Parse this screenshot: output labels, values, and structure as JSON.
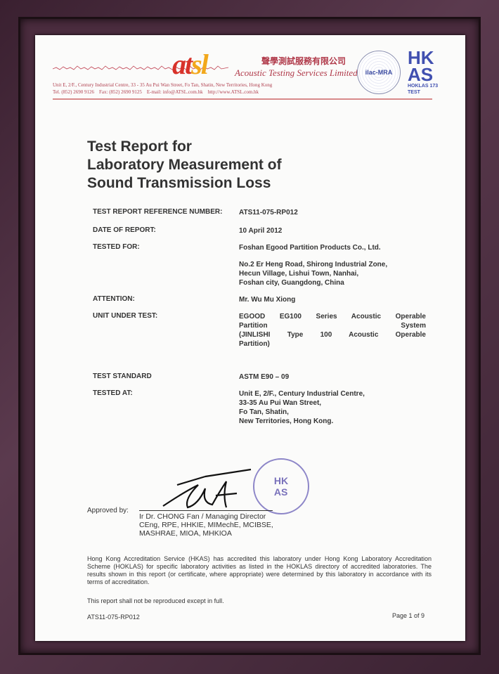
{
  "letterhead": {
    "logo_text": "atsl",
    "company_cn": "聲學測試服務有限公司",
    "company_en": "Acoustic Testing Services Limited",
    "address": "Unit E, 2/F., Century Industrial Centre, 33 - 35 Au Pui Wan Street, Fo Tan, Shatin, New Territories, Hong Kong",
    "contact": "Tel. (852) 2690 9126    Fax: (852) 2690 9125    E-mail: info@ATSL.com.hk    http://www.ATSL.com.hk",
    "ilac": "ilac-MRA",
    "hkas": "HKAS",
    "hoklas": "HOKLAS 173 TEST"
  },
  "title": [
    "Test Report for",
    "Laboratory Measurement of",
    "Sound Transmission Loss"
  ],
  "fields": [
    {
      "label": "TEST REPORT REFERENCE NUMBER:",
      "value": [
        "ATS11-075-RP012"
      ]
    },
    {
      "label": "DATE OF REPORT:",
      "value": [
        "10 April 2012"
      ]
    },
    {
      "label": "TESTED FOR:",
      "value": [
        "Foshan Egood Partition Products Co., Ltd."
      ]
    },
    {
      "label": "",
      "value": [
        "No.2 Er Heng Road, Shirong Industrial Zone,",
        "Hecun Village, Lishui Town, Nanhai,",
        "Foshan city, Guangdong, China"
      ]
    },
    {
      "label": "ATTENTION:",
      "value": [
        "Mr. Wu Mu Xiong"
      ]
    },
    {
      "label": "UNIT UNDER TEST:",
      "value": [
        "EGOOD EG100 Series Acoustic Operable",
        "Partition System",
        "(JINLISHI Type 100 Acoustic Operable",
        "Partition)"
      ]
    },
    {
      "label": "TEST STANDARD",
      "value": [
        "ASTM E90 – 09"
      ]
    },
    {
      "label": "TESTED AT:",
      "value": [
        "Unit E, 2/F., Century Industrial Centre,",
        "33-35 Au Pui Wan Street,",
        "Fo Tan, Shatin,",
        "New Territories, Hong Kong."
      ]
    }
  ],
  "approval": {
    "label": "Approved by:",
    "signatory": [
      "Ir Dr. CHONG Fan / Managing Director",
      "CEng, RPE, HHKIE, MIMechE, MCIBSE,",
      "MASHRAE, MIOA, MHKIOA"
    ],
    "stamp_text": "Acoustic Testing Services Limited"
  },
  "accreditation": "Hong Kong Accreditation Service (HKAS) has accredited this laboratory under Hong Kong Laboratory Accreditation Scheme (HOKLAS) for specific laboratory activities as listed in the HOKLAS directory of accredited laboratories. The results shown in this report (or certificate, where appropriate) were determined by this laboratory in accordance with its terms of accreditation.",
  "reproduction_note": "This report shall not be reproduced except in full.",
  "footer": {
    "ref": "ATS11-075-RP012",
    "page": "Page 1 of 9"
  }
}
